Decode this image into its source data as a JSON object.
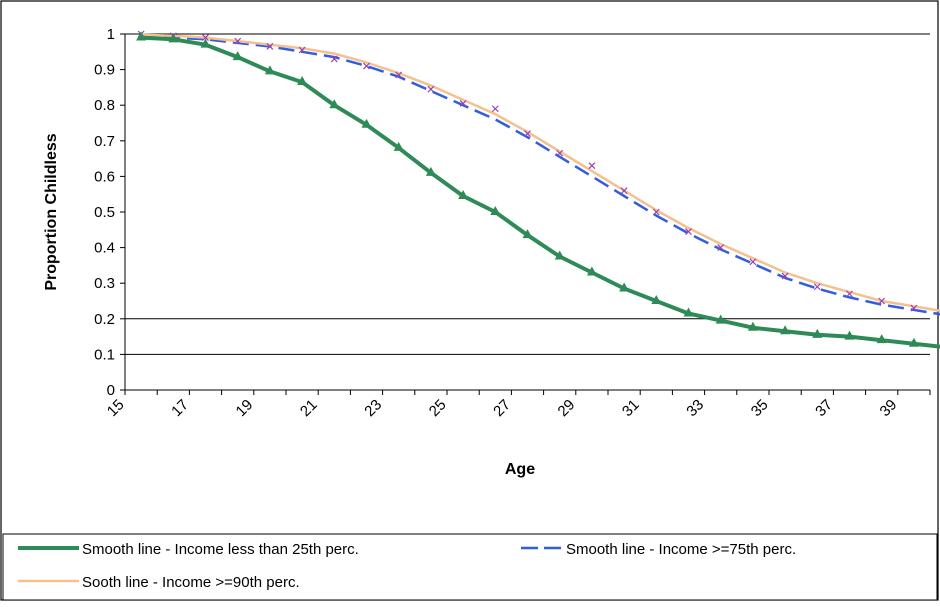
{
  "chart_data": {
    "type": "line",
    "title": "",
    "xlabel": "Age",
    "ylabel": "Proportion Childless",
    "xlim": [
      15,
      40
    ],
    "ylim": [
      0,
      1
    ],
    "y_ticks": [
      "0",
      "0.1",
      "0.2",
      "0.3",
      "0.4",
      "0.5",
      "0.6",
      "0.7",
      "0.8",
      "0.9",
      "1"
    ],
    "x_ticks": [
      "15",
      "17",
      "19",
      "21",
      "23",
      "25",
      "27",
      "29",
      "31",
      "33",
      "35",
      "37",
      "39"
    ],
    "gridlines_y": [
      0.1,
      0.2,
      1.0
    ],
    "legend_position": "bottom",
    "x": [
      15.5,
      16.5,
      17.5,
      18.5,
      19.5,
      20.5,
      21.5,
      22.5,
      23.5,
      24.5,
      25.5,
      26.5,
      27.5,
      28.5,
      29.5,
      30.5,
      31.5,
      32.5,
      33.5,
      34.5,
      35.5,
      36.5,
      37.5,
      38.5,
      39.5,
      40.5
    ],
    "series": [
      {
        "name": "Smooth line - Income less than 25th perc.",
        "color": "#2e8b57",
        "style": "solid",
        "marker": "triangle",
        "values": [
          0.99,
          0.985,
          0.97,
          0.935,
          0.895,
          0.865,
          0.8,
          0.745,
          0.68,
          0.61,
          0.545,
          0.5,
          0.435,
          0.375,
          0.33,
          0.285,
          0.25,
          0.215,
          0.195,
          0.175,
          0.165,
          0.155,
          0.15,
          0.14,
          0.13,
          0.12
        ]
      },
      {
        "name": "Smooth line - Income >=75th perc.",
        "color": "#2f5fe0",
        "style": "dashed",
        "marker": "none",
        "values": [
          0.995,
          0.99,
          0.985,
          0.975,
          0.965,
          0.95,
          0.935,
          0.91,
          0.88,
          0.84,
          0.8,
          0.76,
          0.71,
          0.655,
          0.6,
          0.545,
          0.49,
          0.44,
          0.395,
          0.355,
          0.315,
          0.285,
          0.26,
          0.24,
          0.225,
          0.21
        ]
      },
      {
        "name": "Sooth line - Income >=90th perc.",
        "color": "#f5c090",
        "style": "solid",
        "marker": "none",
        "values": [
          0.998,
          0.995,
          0.99,
          0.98,
          0.97,
          0.96,
          0.945,
          0.92,
          0.89,
          0.855,
          0.815,
          0.775,
          0.725,
          0.67,
          0.615,
          0.56,
          0.505,
          0.455,
          0.41,
          0.37,
          0.33,
          0.3,
          0.275,
          0.25,
          0.235,
          0.22
        ]
      }
    ],
    "point_markers": {
      "color": "#9a40b0",
      "x": [
        15.5,
        16.5,
        17.5,
        18.5,
        19.5,
        20.5,
        21.5,
        22.5,
        23.5,
        24.5,
        25.5,
        26.5,
        27.5,
        28.5,
        29.5,
        30.5,
        31.5,
        32.5,
        33.5,
        34.5,
        35.5,
        36.5,
        37.5,
        38.5,
        39.5,
        40.5
      ],
      "values": [
        1.0,
        0.995,
        0.99,
        0.98,
        0.965,
        0.955,
        0.93,
        0.91,
        0.885,
        0.845,
        0.805,
        0.79,
        0.72,
        0.665,
        0.63,
        0.56,
        0.5,
        0.445,
        0.4,
        0.36,
        0.32,
        0.29,
        0.27,
        0.25,
        0.23,
        0.215
      ]
    }
  }
}
